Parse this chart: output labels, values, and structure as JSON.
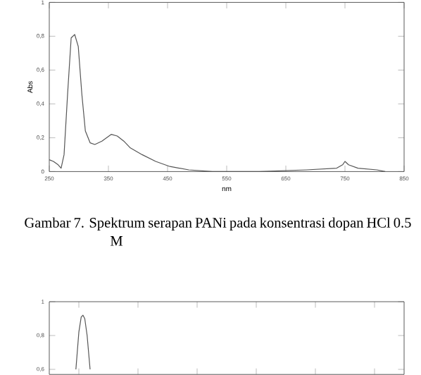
{
  "chart_data": [
    {
      "type": "line",
      "xlabel": "nm",
      "ylabel": "Abs",
      "x": [
        250,
        257,
        265,
        270,
        275,
        281,
        287,
        293,
        299,
        305,
        311,
        319,
        327,
        339,
        355,
        365,
        376,
        387,
        407,
        430,
        454,
        486,
        526,
        605,
        685,
        736,
        746,
        750,
        756,
        772,
        804,
        818
      ],
      "series": [
        {
          "color": "#555555",
          "values": [
            0.07,
            0.06,
            0.04,
            0.02,
            0.1,
            0.46,
            0.79,
            0.81,
            0.74,
            0.46,
            0.24,
            0.17,
            0.16,
            0.18,
            0.22,
            0.21,
            0.18,
            0.14,
            0.1,
            0.06,
            0.03,
            0.01,
            0.0,
            0.0,
            0.01,
            0.02,
            0.04,
            0.06,
            0.04,
            0.02,
            0.01,
            0.0
          ]
        }
      ],
      "xlim": [
        250,
        850
      ],
      "ylim": [
        0,
        1
      ],
      "xticks": [
        250,
        350,
        450,
        550,
        650,
        750,
        850
      ],
      "yticks": [
        0,
        {
          "value": 0.2,
          "label": "0,2"
        },
        {
          "value": 0.4,
          "label": "0,4"
        },
        {
          "value": 0.6,
          "label": "0,6"
        },
        {
          "value": 0.8,
          "label": "0,8"
        },
        1
      ],
      "annotations": [
        "Gambar 7. Spektrum serapan PANi pada konsentrasi dopan HCl 0.5 M"
      ]
    },
    {
      "type": "line",
      "x": [
        295,
        300,
        304,
        307,
        310,
        314,
        319
      ],
      "series": [
        {
          "color": "#555555",
          "values": [
            0.6,
            0.82,
            0.91,
            0.92,
            0.9,
            0.8,
            0.6
          ]
        }
      ],
      "xlim": [
        250,
        850
      ],
      "ylim": [
        0.57,
        1
      ],
      "yticks": [
        {
          "value": 0.6,
          "label": "0,6"
        },
        {
          "value": 0.8,
          "label": "0,8"
        },
        1
      ],
      "tick_labels": "y"
    }
  ]
}
